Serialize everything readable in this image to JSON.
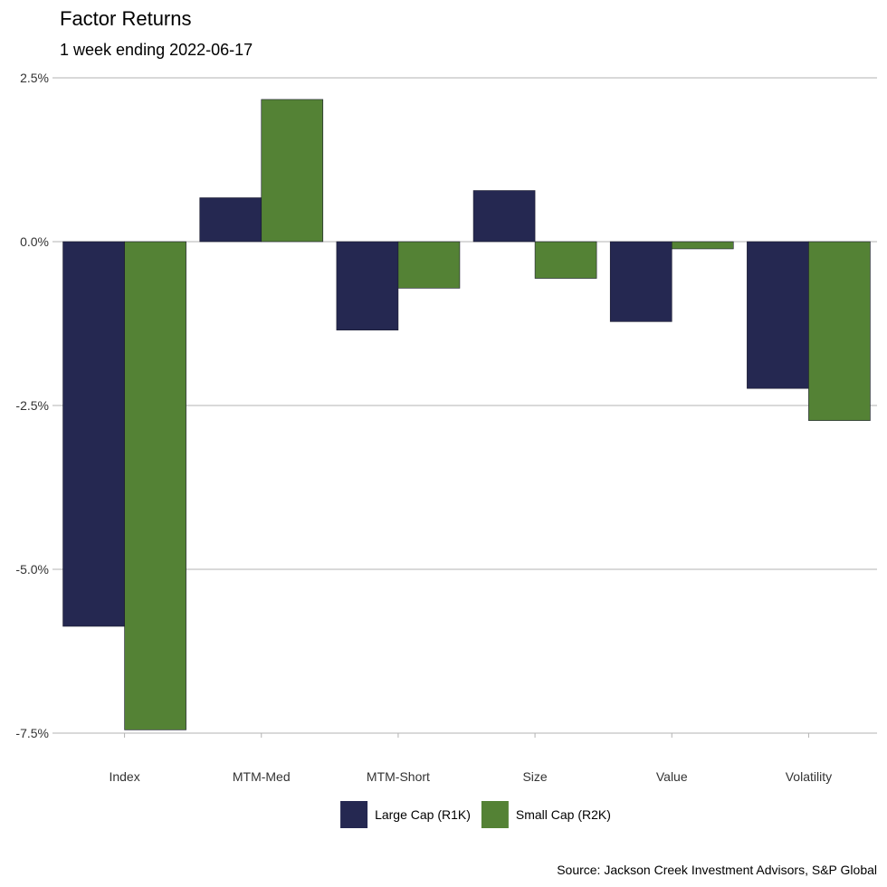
{
  "chart_data": {
    "type": "bar",
    "title": "Factor Returns",
    "subtitle": "1 week ending 2022-06-17",
    "caption": "Source: Jackson Creek Investment Advisors, S&P Global",
    "xlabel": "",
    "ylabel": "",
    "categories": [
      "Index",
      "MTM-Med",
      "MTM-Short",
      "Size",
      "Value",
      "Volatility"
    ],
    "series": [
      {
        "name": "Large Cap (R1K)",
        "color": "#252851",
        "values": [
          -5.87,
          0.67,
          -1.35,
          0.78,
          -1.22,
          -2.24
        ]
      },
      {
        "name": "Small Cap (R2K)",
        "color": "#548235",
        "values": [
          -7.45,
          2.17,
          -0.71,
          -0.56,
          -0.11,
          -2.73
        ]
      }
    ],
    "ylim": [
      -7.5,
      2.5
    ],
    "yticks": [
      2.5,
      0.0,
      -2.5,
      -5.0,
      -7.5
    ],
    "ytick_labels": [
      "2.5%",
      "0.0%",
      "-2.5%",
      "-5.0%",
      "-7.5%"
    ],
    "grid": true,
    "legend_position": "bottom"
  }
}
